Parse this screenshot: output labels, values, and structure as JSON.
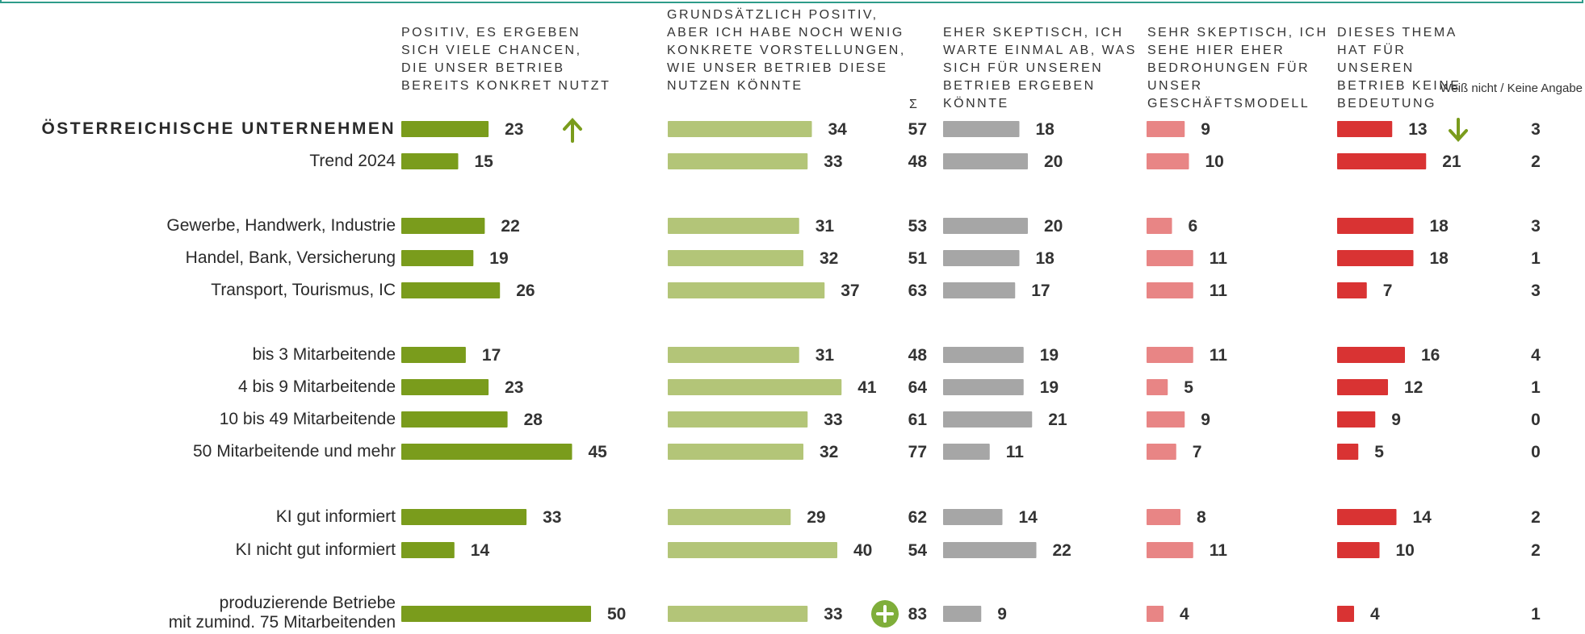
{
  "colors": {
    "positive": "#7a9c1c",
    "basically_positive": "#b3c578",
    "sum": "#333333",
    "skeptical": "#a6a6a6",
    "very_skeptical": "#e88585",
    "no_relevance": "#d93333",
    "frame": "#2e9c8a",
    "arrow_up": "#7a9c1c",
    "arrow_down": "#7a9c1c",
    "plus_badge": "#7fae3a"
  },
  "headers": {
    "positive": "Positiv, es ergeben sich viele Chancen, die unser Betrieb bereits konkret nutzt",
    "basically_positive": "Grundsätzlich positiv, aber ich habe noch wenig konkrete Vorstellungen, wie unser Betrieb diese nutzen könnte",
    "sum": "Σ",
    "skeptical": "Eher skeptisch, ich warte einmal ab, was sich für unseren Betrieb ergeben könnte",
    "very_skeptical": "Sehr skeptisch, ich sehe hier eher Bedrohungen für unser Geschäftsmodell",
    "no_relevance": "Dieses Thema hat für unseren Betrieb keine Bedeutung",
    "dont_know": "Weiß nicht / Keine Angabe"
  },
  "chart_data": {
    "type": "bar",
    "orientation": "horizontal",
    "series_names": [
      "Positiv, es ergeben sich viele Chancen, die unser Betrieb bereits konkret nutzt",
      "Grundsätzlich positiv, aber ich habe noch wenig konkrete Vorstellungen, wie unser Betrieb diese nutzen könnte",
      "Σ",
      "Eher skeptisch, ich warte einmal ab, was sich für unseren Betrieb ergeben könnte",
      "Sehr skeptisch, ich sehe hier eher Bedrohungen für unser Geschäftsmodell",
      "Dieses Thema hat für unseren Betrieb keine Bedeutung",
      "Weiß nicht / Keine Angabe"
    ],
    "rows": [
      {
        "label": "Österreichische Unternehmen",
        "bold": true,
        "values": [
          23,
          34,
          57,
          18,
          9,
          13,
          3
        ],
        "markers": {
          "positive": "arrow-up",
          "no_relevance": "arrow-down"
        }
      },
      {
        "label": "Trend 2024",
        "values": [
          15,
          33,
          48,
          20,
          10,
          21,
          2
        ]
      },
      {
        "label": "Gewerbe, Handwerk, Industrie",
        "values": [
          22,
          31,
          53,
          20,
          6,
          18,
          3
        ]
      },
      {
        "label": "Handel, Bank, Versicherung",
        "values": [
          19,
          32,
          51,
          18,
          11,
          18,
          1
        ]
      },
      {
        "label": "Transport, Tourismus, IC",
        "values": [
          26,
          37,
          63,
          17,
          11,
          7,
          3
        ]
      },
      {
        "label": "bis 3 Mitarbeitende",
        "values": [
          17,
          31,
          48,
          19,
          11,
          16,
          4
        ]
      },
      {
        "label": "4 bis 9 Mitarbeitende",
        "values": [
          23,
          41,
          64,
          19,
          5,
          12,
          1
        ]
      },
      {
        "label": "10 bis 49 Mitarbeitende",
        "values": [
          28,
          33,
          61,
          21,
          9,
          9,
          0
        ]
      },
      {
        "label": "50 Mitarbeitende und mehr",
        "values": [
          45,
          32,
          77,
          11,
          7,
          5,
          0
        ]
      },
      {
        "label": "KI gut informiert",
        "values": [
          33,
          29,
          62,
          14,
          8,
          14,
          2
        ]
      },
      {
        "label": "KI nicht gut informiert",
        "values": [
          14,
          40,
          54,
          22,
          11,
          10,
          2
        ]
      },
      {
        "label": "produzierende Betriebe\nmit zumind. 75 Mitarbeitenden",
        "values": [
          50,
          33,
          83,
          9,
          4,
          4,
          1
        ],
        "markers": {
          "sum": "plus"
        }
      }
    ]
  }
}
